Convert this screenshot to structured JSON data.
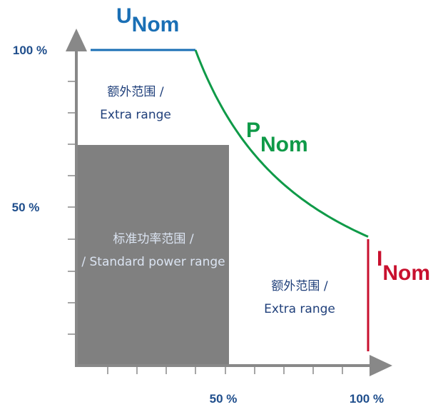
{
  "axes": {
    "y_labels": [
      "100 %",
      "50 %"
    ],
    "x_labels": [
      "50 %",
      "100 %"
    ]
  },
  "curves": {
    "voltage": {
      "symbol": "U",
      "subscript": "Nom"
    },
    "power": {
      "symbol": "P",
      "subscript": "Nom"
    },
    "current": {
      "symbol": "I",
      "subscript": "Nom"
    }
  },
  "regions": [
    {
      "lines": [
        "额外范围 /",
        "Extra range"
      ]
    },
    {
      "lines": [
        "标准功率范围 /",
        "/ Standard power range"
      ]
    },
    {
      "lines": [
        "额外范围 /",
        "Extra range"
      ]
    }
  ]
}
